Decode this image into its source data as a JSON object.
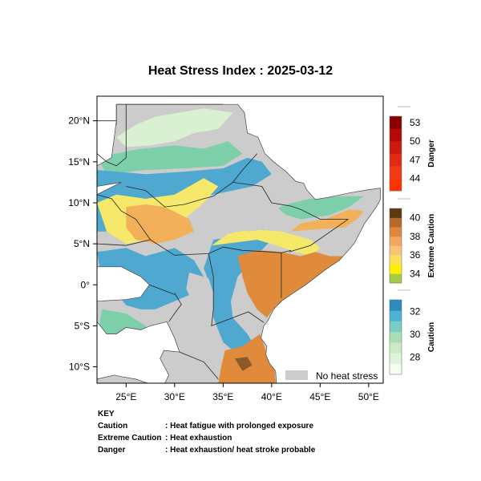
{
  "title": "Heat Stress Index : 2025-03-12",
  "map": {
    "lon_range": [
      22,
      51.5
    ],
    "lat_range": [
      -12,
      23
    ],
    "lon_ticks": [
      {
        "value": 25,
        "label": "25°E"
      },
      {
        "value": 30,
        "label": "30°E"
      },
      {
        "value": 35,
        "label": "35°E"
      },
      {
        "value": 40,
        "label": "40°E"
      },
      {
        "value": 45,
        "label": "45°E"
      },
      {
        "value": 50,
        "label": "50°E"
      }
    ],
    "lat_ticks": [
      {
        "value": 20,
        "label": "20°N"
      },
      {
        "value": 15,
        "label": "15°N"
      },
      {
        "value": 10,
        "label": "10°N"
      },
      {
        "value": 5,
        "label": "5°N"
      },
      {
        "value": 0,
        "label": "0°"
      },
      {
        "value": -5,
        "label": "5°S"
      },
      {
        "value": -10,
        "label": "10°S"
      }
    ],
    "no_stress_label": "No heat stress",
    "colors": {
      "no_stress": "#cccccc",
      "caution_low": "#d9f0d3",
      "caution_mid": "#7ccfa8",
      "caution_high": "#4fa8d0",
      "caution_top": "#2a6fb5",
      "extreme_low": "#f5e86a",
      "extreme_mid": "#f2b05a",
      "extreme_high": "#e08a3c",
      "extreme_top": "#8a5a2a"
    }
  },
  "colorbars": [
    {
      "name": "Danger",
      "colors": [
        "#ff3300",
        "#f23a1a",
        "#e02a14",
        "#cc1a0e",
        "#b30a08",
        "#8a0000"
      ],
      "ticks": [
        {
          "value": 44,
          "label": "44"
        },
        {
          "value": 47,
          "label": "47"
        },
        {
          "value": 50,
          "label": "50"
        },
        {
          "value": 53,
          "label": "53"
        }
      ],
      "range": [
        42,
        54
      ]
    },
    {
      "name": "Extreme Caution",
      "colors": [
        "#a6cc47",
        "#fff000",
        "#fbe05a",
        "#f7c477",
        "#f2a660",
        "#e0873b",
        "#b36a2a",
        "#5e3a10"
      ],
      "ticks": [
        {
          "value": 34,
          "label": "34"
        },
        {
          "value": 36,
          "label": "36"
        },
        {
          "value": 38,
          "label": "38"
        },
        {
          "value": 40,
          "label": "40"
        }
      ],
      "range": [
        33,
        41
      ]
    },
    {
      "name": "Caution",
      "colors": [
        "#f7fcf0",
        "#e0f3db",
        "#ccebc5",
        "#a8ddb5",
        "#7bccc4",
        "#4eb3d3",
        "#2b8cbe"
      ],
      "ticks": [
        {
          "value": 28,
          "label": "28"
        },
        {
          "value": 30,
          "label": "30"
        },
        {
          "value": 32,
          "label": "32"
        }
      ],
      "range": [
        26.5,
        33
      ]
    }
  ],
  "key": {
    "heading": "KEY",
    "rows": [
      {
        "term": "Caution",
        "desc": ": Heat fatigue with prolonged exposure"
      },
      {
        "term": "Extreme Caution",
        "desc": ": Heat exhaustion"
      },
      {
        "term": "Danger",
        "desc": ": Heat exhaustion/ heat stroke probable"
      }
    ]
  }
}
